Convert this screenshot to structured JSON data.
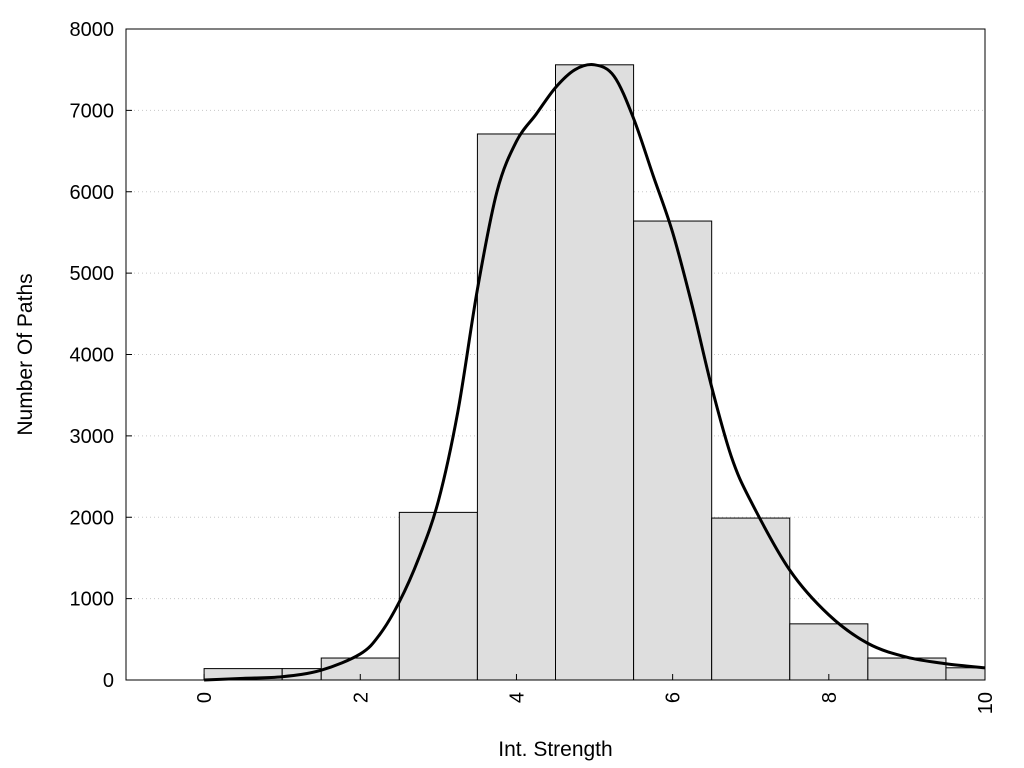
{
  "chart_data": {
    "type": "bar",
    "xlabel": "Int. Strength",
    "ylabel": "Number Of Paths",
    "xlim": [
      -1,
      10
    ],
    "ylim": [
      0,
      8000
    ],
    "x_ticks": [
      0,
      2,
      4,
      6,
      8,
      10
    ],
    "x_tick_labels": [
      "0",
      "2",
      "4",
      "6",
      "8",
      "10"
    ],
    "y_ticks": [
      0,
      1000,
      2000,
      3000,
      4000,
      5000,
      6000,
      7000,
      8000
    ],
    "y_tick_labels": [
      "0",
      "1000",
      "2000",
      "3000",
      "4000",
      "5000",
      "6000",
      "7000",
      "8000"
    ],
    "grid": "horizontal-dotted",
    "bar_fill": "#dedede",
    "bins": [
      {
        "x0": 0.0,
        "x1": 1.0,
        "value": 140
      },
      {
        "x0": 1.0,
        "x1": 1.5,
        "value": 140
      },
      {
        "x0": 1.5,
        "x1": 2.5,
        "value": 270
      },
      {
        "x0": 2.5,
        "x1": 3.5,
        "value": 2060
      },
      {
        "x0": 3.5,
        "x1": 4.5,
        "value": 6710
      },
      {
        "x0": 4.5,
        "x1": 5.5,
        "value": 7560
      },
      {
        "x0": 5.5,
        "x1": 6.5,
        "value": 5640
      },
      {
        "x0": 6.5,
        "x1": 7.5,
        "value": 1990
      },
      {
        "x0": 7.5,
        "x1": 8.5,
        "value": 690
      },
      {
        "x0": 8.5,
        "x1": 9.5,
        "value": 270
      },
      {
        "x0": 9.5,
        "x1": 10.0,
        "value": 150
      }
    ],
    "curve": {
      "x": [
        0.0,
        0.5,
        1.0,
        1.5,
        2.0,
        2.25,
        2.5,
        2.75,
        3.0,
        3.25,
        3.5,
        3.75,
        4.0,
        4.25,
        4.5,
        4.75,
        5.0,
        5.25,
        5.5,
        5.75,
        6.0,
        6.25,
        6.5,
        6.75,
        7.0,
        7.5,
        8.0,
        8.5,
        9.0,
        9.5,
        10.0
      ],
      "y": [
        0,
        20,
        40,
        120,
        320,
        560,
        960,
        1500,
        2200,
        3300,
        4800,
        6000,
        6620,
        6950,
        7280,
        7500,
        7560,
        7420,
        6900,
        6200,
        5500,
        4600,
        3600,
        2750,
        2200,
        1350,
        800,
        450,
        280,
        200,
        150
      ]
    }
  }
}
